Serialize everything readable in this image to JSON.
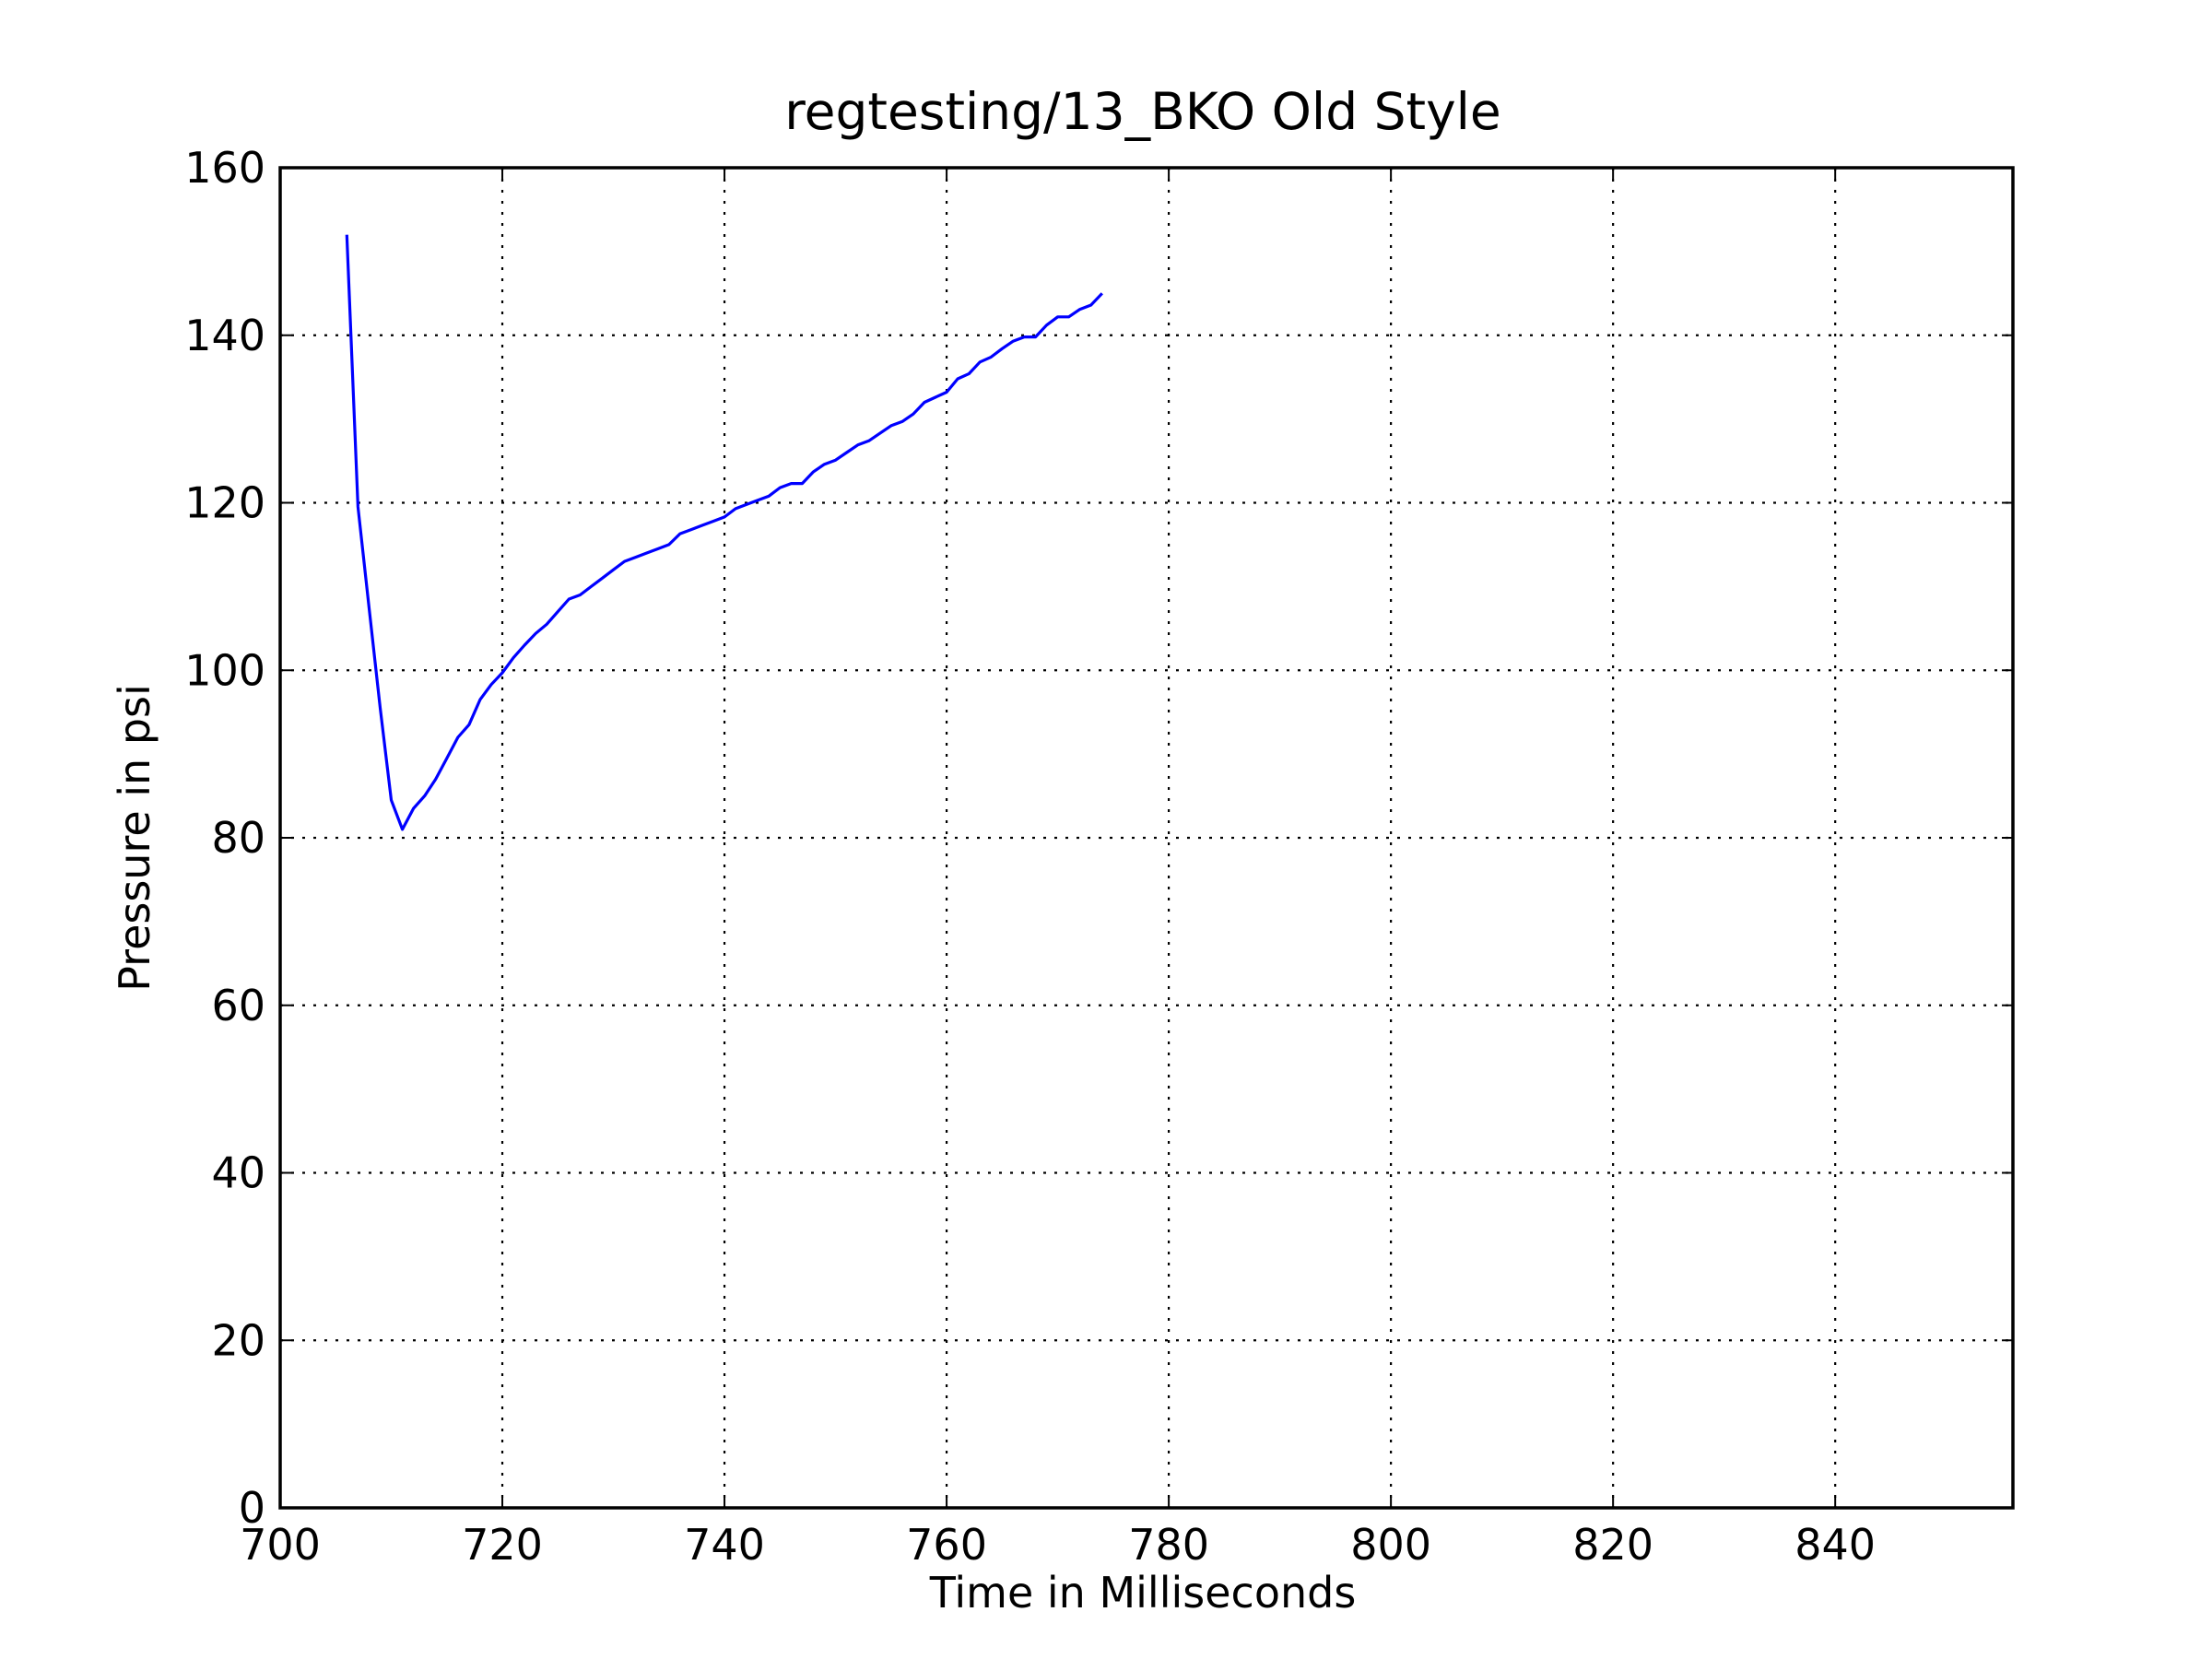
{
  "chart_data": {
    "type": "line",
    "title": "regtesting/13_BKO Old Style",
    "xlabel": "Time in Milliseconds",
    "ylabel": "Pressure in psi",
    "xlim": [
      700,
      856
    ],
    "ylim": [
      0,
      160
    ],
    "xticks": [
      700,
      720,
      740,
      760,
      780,
      800,
      820,
      840
    ],
    "yticks": [
      0,
      20,
      40,
      60,
      80,
      100,
      120,
      140,
      160
    ],
    "grid": true,
    "series": [
      {
        "color": "#0000ff",
        "x": [
          706,
          707,
          708,
          709,
          710,
          711,
          712,
          713,
          714,
          715,
          716,
          717,
          718,
          719,
          720,
          721,
          722,
          723,
          724,
          725,
          726,
          727,
          728,
          729,
          730,
          731,
          732,
          733,
          734,
          735,
          736,
          737,
          738,
          739,
          740,
          741,
          742,
          743,
          744,
          745,
          746,
          747,
          748,
          749,
          750,
          751,
          752,
          753,
          754,
          755,
          756,
          757,
          758,
          759,
          760,
          761,
          762,
          763,
          764,
          765,
          766,
          767,
          768,
          769,
          770,
          771,
          772,
          773,
          774
        ],
        "y": [
          152,
          119.5,
          107.5,
          95.5,
          84.5,
          81,
          83.5,
          85,
          87,
          89.5,
          92,
          93.5,
          96.5,
          98.3,
          99.7,
          101.5,
          103,
          104.4,
          105.5,
          107,
          108.5,
          109,
          110,
          111,
          112,
          113,
          113.5,
          114,
          114.5,
          115,
          116.3,
          116.8,
          117.3,
          117.8,
          118.3,
          119.3,
          119.8,
          120.3,
          120.8,
          121.8,
          122.3,
          122.3,
          123.7,
          124.6,
          125.1,
          126,
          126.9,
          127.4,
          128.3,
          129.2,
          129.7,
          130.6,
          132,
          132.6,
          133.2,
          134.8,
          135.4,
          136.8,
          137.4,
          138.4,
          139.3,
          139.8,
          139.8,
          141.2,
          142.2,
          142.2,
          143.1,
          143.6,
          145
        ]
      }
    ]
  }
}
